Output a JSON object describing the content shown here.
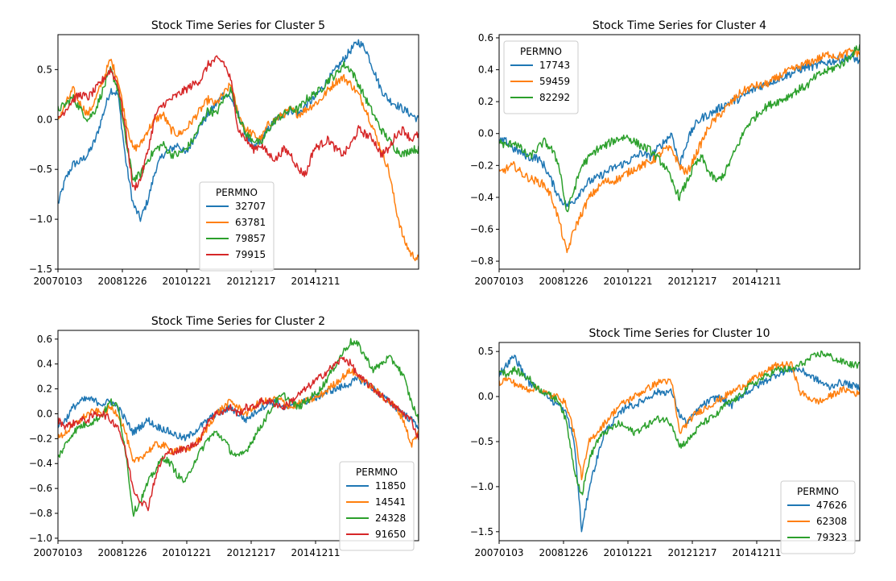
{
  "figure": {
    "description": "2x2 grid of line charts"
  },
  "colors": {
    "blue": "#1f77b4",
    "orange": "#ff7f0e",
    "green": "#2ca02c",
    "red": "#d62728"
  },
  "chart_data": [
    {
      "type": "line",
      "title": "Stock Time Series for Cluster 5",
      "xlabel": "",
      "ylabel": "",
      "x_tick_labels": [
        "20070103",
        "20081226",
        "20101221",
        "20121217",
        "20141211"
      ],
      "y_ticks": [
        0.5,
        0.0,
        -0.5,
        -1.0,
        -1.5
      ],
      "y_tick_labels": [
        "0.5",
        "0.0",
        "−0.5",
        "−1.0",
        "−1.5"
      ],
      "ylim": [
        -1.5,
        0.85
      ],
      "legend": {
        "title": "PERMNO",
        "placement": "lower-center"
      },
      "series": [
        {
          "name": "32707",
          "color": "#1f77b4",
          "values": [
            -0.85,
            -0.6,
            -0.45,
            -0.42,
            -0.35,
            -0.2,
            0.05,
            0.3,
            0.25,
            -0.4,
            -0.85,
            -1.0,
            -0.8,
            -0.5,
            -0.35,
            -0.3,
            -0.25,
            -0.35,
            -0.2,
            -0.05,
            0.05,
            0.15,
            0.25,
            0.22,
            0.05,
            -0.15,
            -0.3,
            -0.2,
            -0.1,
            0.0,
            0.05,
            0.1,
            0.05,
            0.15,
            0.2,
            0.3,
            0.4,
            0.5,
            0.6,
            0.7,
            0.78,
            0.7,
            0.5,
            0.3,
            0.2,
            0.15,
            0.1,
            0.05,
            0.0
          ]
        },
        {
          "name": "63781",
          "color": "#ff7f0e",
          "values": [
            0.0,
            0.15,
            0.3,
            0.15,
            0.05,
            0.2,
            0.4,
            0.6,
            0.4,
            0.0,
            -0.3,
            -0.25,
            -0.1,
            0.0,
            0.05,
            -0.1,
            -0.15,
            -0.1,
            0.0,
            0.1,
            0.2,
            0.15,
            0.25,
            0.35,
            0.05,
            -0.1,
            -0.15,
            -0.2,
            -0.05,
            0.0,
            0.05,
            0.1,
            0.05,
            0.1,
            0.15,
            0.2,
            0.3,
            0.38,
            0.42,
            0.35,
            0.25,
            0.1,
            -0.1,
            -0.3,
            -0.5,
            -0.9,
            -1.2,
            -1.35,
            -1.4
          ]
        },
        {
          "name": "79857",
          "color": "#2ca02c",
          "values": [
            0.1,
            0.15,
            0.22,
            0.1,
            0.0,
            0.1,
            0.3,
            0.5,
            0.3,
            -0.2,
            -0.6,
            -0.55,
            -0.4,
            -0.3,
            -0.25,
            -0.35,
            -0.35,
            -0.3,
            -0.2,
            -0.05,
            0.1,
            0.05,
            0.2,
            0.3,
            0.05,
            -0.15,
            -0.2,
            -0.25,
            -0.1,
            0.0,
            0.05,
            0.1,
            0.1,
            0.2,
            0.25,
            0.3,
            0.4,
            0.45,
            0.55,
            0.5,
            0.35,
            0.2,
            0.05,
            -0.1,
            -0.2,
            -0.3,
            -0.35,
            -0.3,
            -0.3
          ]
        },
        {
          "name": "79915",
          "color": "#d62728",
          "values": [
            0.0,
            0.1,
            0.2,
            0.25,
            0.22,
            0.3,
            0.4,
            0.5,
            0.35,
            -0.1,
            -0.7,
            -0.6,
            -0.3,
            0.05,
            0.15,
            0.2,
            0.25,
            0.3,
            0.35,
            0.4,
            0.55,
            0.6,
            0.58,
            0.4,
            -0.1,
            -0.2,
            -0.3,
            -0.25,
            -0.35,
            -0.4,
            -0.3,
            -0.35,
            -0.5,
            -0.55,
            -0.3,
            -0.25,
            -0.2,
            -0.3,
            -0.35,
            -0.25,
            -0.1,
            -0.15,
            -0.2,
            -0.35,
            -0.3,
            -0.15,
            -0.1,
            -0.2,
            -0.15
          ]
        }
      ]
    },
    {
      "type": "line",
      "title": "Stock Time Series for Cluster 4",
      "xlabel": "",
      "ylabel": "",
      "x_tick_labels": [
        "20070103",
        "20081226",
        "20101221",
        "20121217",
        "20141211"
      ],
      "y_ticks": [
        0.6,
        0.4,
        0.2,
        0.0,
        -0.2,
        -0.4,
        -0.6,
        -0.8
      ],
      "y_tick_labels": [
        "0.6",
        "0.4",
        "0.2",
        "0.0",
        "−0.2",
        "−0.4",
        "−0.6",
        "−0.8"
      ],
      "ylim": [
        -0.85,
        0.62
      ],
      "legend": {
        "title": "PERMNO",
        "placement": "upper-left"
      },
      "series": [
        {
          "name": "17743",
          "color": "#1f77b4",
          "values": [
            -0.05,
            -0.05,
            -0.1,
            -0.12,
            -0.15,
            -0.15,
            -0.2,
            -0.3,
            -0.4,
            -0.45,
            -0.42,
            -0.35,
            -0.3,
            -0.28,
            -0.25,
            -0.22,
            -0.2,
            -0.18,
            -0.15,
            -0.12,
            -0.15,
            -0.1,
            -0.05,
            0.0,
            -0.2,
            -0.05,
            0.05,
            0.1,
            0.12,
            0.15,
            0.18,
            0.2,
            0.22,
            0.25,
            0.28,
            0.3,
            0.32,
            0.34,
            0.36,
            0.38,
            0.4,
            0.42,
            0.42,
            0.44,
            0.45,
            0.46,
            0.47,
            0.48,
            0.45
          ]
        },
        {
          "name": "59459",
          "color": "#ff7f0e",
          "values": [
            -0.25,
            -0.22,
            -0.2,
            -0.25,
            -0.28,
            -0.3,
            -0.32,
            -0.4,
            -0.55,
            -0.75,
            -0.6,
            -0.5,
            -0.4,
            -0.35,
            -0.3,
            -0.3,
            -0.28,
            -0.25,
            -0.22,
            -0.2,
            -0.18,
            -0.15,
            -0.1,
            -0.1,
            -0.2,
            -0.25,
            -0.15,
            -0.05,
            0.05,
            0.1,
            0.15,
            0.2,
            0.25,
            0.28,
            0.3,
            0.3,
            0.32,
            0.35,
            0.38,
            0.4,
            0.42,
            0.44,
            0.46,
            0.48,
            0.5,
            0.48,
            0.5,
            0.52,
            0.5
          ]
        },
        {
          "name": "82292",
          "color": "#2ca02c",
          "values": [
            -0.05,
            -0.08,
            -0.05,
            -0.1,
            -0.15,
            -0.1,
            -0.05,
            -0.1,
            -0.2,
            -0.5,
            -0.35,
            -0.2,
            -0.15,
            -0.1,
            -0.08,
            -0.05,
            -0.03,
            -0.02,
            -0.05,
            -0.08,
            -0.1,
            -0.15,
            -0.2,
            -0.3,
            -0.4,
            -0.3,
            -0.2,
            -0.15,
            -0.25,
            -0.3,
            -0.25,
            -0.15,
            -0.05,
            0.05,
            0.1,
            0.15,
            0.18,
            0.2,
            0.22,
            0.25,
            0.28,
            0.3,
            0.35,
            0.38,
            0.4,
            0.42,
            0.45,
            0.5,
            0.55
          ]
        }
      ]
    },
    {
      "type": "line",
      "title": "Stock Time Series for Cluster 2",
      "xlabel": "",
      "ylabel": "",
      "x_tick_labels": [
        "20070103",
        "20081226",
        "20101221",
        "20121217",
        "20141211"
      ],
      "y_ticks": [
        0.6,
        0.4,
        0.2,
        0.0,
        -0.2,
        -0.4,
        -0.6,
        -0.8,
        -1.0
      ],
      "y_tick_labels": [
        "0.6",
        "0.4",
        "0.2",
        "0.0",
        "−0.2",
        "−0.4",
        "−0.6",
        "−0.8",
        "−1.0"
      ],
      "ylim": [
        -1.02,
        0.67
      ],
      "legend": {
        "title": "PERMNO",
        "placement": "lower-right"
      },
      "series": [
        {
          "name": "11850",
          "color": "#1f77b4",
          "values": [
            -0.1,
            -0.05,
            0.05,
            0.1,
            0.12,
            0.1,
            0.08,
            0.1,
            0.05,
            -0.05,
            -0.15,
            -0.1,
            -0.05,
            -0.1,
            -0.12,
            -0.15,
            -0.18,
            -0.2,
            -0.15,
            -0.1,
            -0.05,
            0.0,
            0.02,
            0.05,
            0.0,
            -0.05,
            0.0,
            0.05,
            0.08,
            0.1,
            0.05,
            0.05,
            0.08,
            0.1,
            0.12,
            0.15,
            0.18,
            0.2,
            0.22,
            0.25,
            0.28,
            0.25,
            0.2,
            0.15,
            0.1,
            0.05,
            0.0,
            -0.05,
            -0.1
          ]
        },
        {
          "name": "14541",
          "color": "#ff7f0e",
          "values": [
            -0.2,
            -0.15,
            -0.1,
            -0.05,
            0.0,
            0.02,
            0.0,
            0.05,
            0.0,
            -0.15,
            -0.4,
            -0.35,
            -0.3,
            -0.25,
            -0.25,
            -0.3,
            -0.28,
            -0.3,
            -0.25,
            -0.2,
            -0.1,
            0.0,
            0.05,
            0.1,
            0.05,
            0.0,
            0.05,
            0.1,
            0.1,
            0.12,
            0.1,
            0.05,
            0.08,
            0.1,
            0.12,
            0.15,
            0.2,
            0.25,
            0.3,
            0.35,
            0.3,
            0.25,
            0.2,
            0.15,
            0.1,
            0.05,
            -0.05,
            -0.25,
            -0.15
          ]
        },
        {
          "name": "24328",
          "color": "#2ca02c",
          "values": [
            -0.35,
            -0.25,
            -0.15,
            -0.1,
            -0.08,
            -0.05,
            0.0,
            0.1,
            0.05,
            -0.3,
            -0.8,
            -0.7,
            -0.55,
            -0.45,
            -0.35,
            -0.4,
            -0.5,
            -0.55,
            -0.4,
            -0.3,
            -0.2,
            -0.15,
            -0.2,
            -0.3,
            -0.35,
            -0.3,
            -0.2,
            -0.1,
            0.0,
            0.1,
            0.15,
            0.1,
            0.05,
            0.1,
            0.15,
            0.2,
            0.3,
            0.4,
            0.5,
            0.58,
            0.55,
            0.45,
            0.35,
            0.4,
            0.45,
            0.4,
            0.3,
            0.1,
            -0.05
          ]
        },
        {
          "name": "91650",
          "color": "#d62728",
          "values": [
            -0.05,
            -0.1,
            -0.08,
            -0.05,
            -0.05,
            0.0,
            0.0,
            -0.05,
            -0.1,
            -0.3,
            -0.6,
            -0.7,
            -0.75,
            -0.5,
            -0.35,
            -0.3,
            -0.3,
            -0.28,
            -0.25,
            -0.2,
            -0.05,
            0.0,
            0.02,
            0.05,
            0.0,
            0.05,
            0.05,
            0.1,
            0.1,
            0.08,
            0.05,
            0.1,
            0.15,
            0.2,
            0.25,
            0.3,
            0.35,
            0.4,
            0.45,
            0.4,
            0.3,
            0.25,
            0.2,
            0.15,
            0.1,
            0.05,
            0.0,
            -0.05,
            -0.2
          ]
        }
      ]
    },
    {
      "type": "line",
      "title": "Stock Time Series for Cluster 10",
      "xlabel": "",
      "ylabel": "",
      "x_tick_labels": [
        "20070103",
        "20081226",
        "20101221",
        "20121217",
        "20141211"
      ],
      "y_ticks": [
        0.5,
        0.0,
        -0.5,
        -1.0,
        -1.5
      ],
      "y_tick_labels": [
        "0.5",
        "0.0",
        "−0.5",
        "−1.0",
        "−1.5"
      ],
      "ylim": [
        -1.6,
        0.6
      ],
      "legend": {
        "title": "PERMNO",
        "placement": "lower-right"
      },
      "series": [
        {
          "name": "47626",
          "color": "#1f77b4",
          "values": [
            0.25,
            0.35,
            0.45,
            0.3,
            0.15,
            0.1,
            0.05,
            -0.05,
            -0.1,
            -0.2,
            -0.5,
            -1.5,
            -1.0,
            -0.7,
            -0.4,
            -0.3,
            -0.2,
            -0.1,
            -0.1,
            -0.05,
            0.0,
            0.05,
            0.05,
            0.05,
            -0.2,
            -0.3,
            -0.2,
            -0.1,
            -0.05,
            0.0,
            -0.05,
            -0.1,
            0.0,
            0.05,
            0.1,
            0.15,
            0.2,
            0.25,
            0.28,
            0.3,
            0.3,
            0.25,
            0.2,
            0.15,
            0.1,
            0.15,
            0.15,
            0.12,
            0.1
          ]
        },
        {
          "name": "62308",
          "color": "#ff7f0e",
          "values": [
            0.15,
            0.2,
            0.15,
            0.1,
            0.08,
            0.1,
            0.05,
            0.0,
            0.0,
            -0.1,
            -0.4,
            -0.9,
            -0.5,
            -0.4,
            -0.3,
            -0.2,
            -0.1,
            -0.05,
            0.0,
            0.05,
            0.1,
            0.15,
            0.18,
            0.15,
            -0.4,
            -0.3,
            -0.2,
            -0.15,
            -0.1,
            -0.05,
            0.0,
            0.05,
            0.1,
            0.15,
            0.2,
            0.25,
            0.3,
            0.35,
            0.35,
            0.35,
            0.05,
            0.0,
            -0.05,
            -0.05,
            0.0,
            0.05,
            0.08,
            0.05,
            0.02
          ]
        },
        {
          "name": "79323",
          "color": "#2ca02c",
          "values": [
            0.3,
            0.25,
            0.3,
            0.25,
            0.2,
            0.1,
            0.05,
            0.0,
            -0.05,
            -0.3,
            -0.8,
            -1.1,
            -0.7,
            -0.5,
            -0.4,
            -0.35,
            -0.3,
            -0.35,
            -0.4,
            -0.35,
            -0.3,
            -0.25,
            -0.25,
            -0.3,
            -0.55,
            -0.5,
            -0.4,
            -0.3,
            -0.25,
            -0.2,
            -0.1,
            -0.05,
            0.0,
            0.1,
            0.15,
            0.2,
            0.25,
            0.3,
            0.3,
            0.3,
            0.35,
            0.4,
            0.45,
            0.48,
            0.45,
            0.4,
            0.38,
            0.35,
            0.35
          ]
        }
      ]
    }
  ]
}
